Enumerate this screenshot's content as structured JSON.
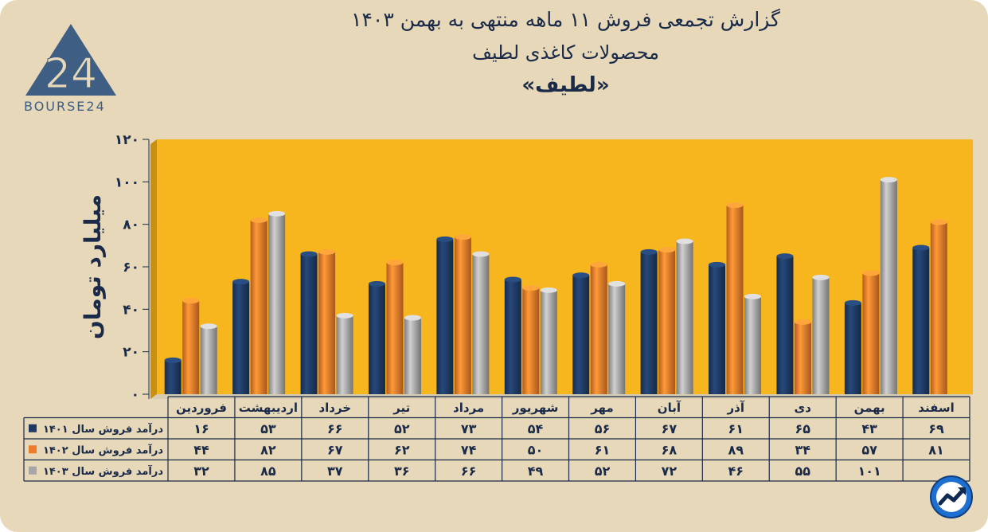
{
  "header": {
    "title_line1": "گزارش تجمعی فروش ۱۱ ماهه منتهی به بهمن ۱۴۰۳",
    "title_line2": "محصولات کاغذی لطیف",
    "title_line3": "«لطیف»"
  },
  "logo": {
    "text": "BOURSE24",
    "icon": "bourse24-logo-icon"
  },
  "corner_badge": {
    "icon": "trend-chart-badge-icon"
  },
  "colors": {
    "background": "#e6d8b8",
    "plot_area": "#f7b61e",
    "series_1401": "#1e3a62",
    "series_1402": "#ee7b2b",
    "series_1403": "#a6a6a6",
    "text": "#1a2a48"
  },
  "chart_data": {
    "type": "bar",
    "ylabel": "میلیارد تومان",
    "ylim": [
      0,
      120
    ],
    "yticks": [
      "۰",
      "۲۰",
      "۴۰",
      "۶۰",
      "۸۰",
      "۱۰۰",
      "۱۲۰"
    ],
    "yticks_values": [
      0,
      20,
      40,
      60,
      80,
      100,
      120
    ],
    "grid": false,
    "legend_placement": "table-left",
    "categories": [
      "فروردین",
      "اردیبهشت",
      "خرداد",
      "تیر",
      "مرداد",
      "شهریور",
      "مهر",
      "آبان",
      "آذر",
      "دی",
      "بهمن",
      "اسفند"
    ],
    "series": [
      {
        "name": "درآمد فروش سال ۱۴۰۱",
        "color": "#1e3a62",
        "values": [
          16,
          53,
          66,
          52,
          73,
          54,
          56,
          67,
          61,
          65,
          43,
          69
        ],
        "labels": [
          "۱۶",
          "۵۳",
          "۶۶",
          "۵۲",
          "۷۳",
          "۵۴",
          "۵۶",
          "۶۷",
          "۶۱",
          "۶۵",
          "۴۳",
          "۶۹"
        ]
      },
      {
        "name": "درآمد فروش سال ۱۴۰۲",
        "color": "#ee7b2b",
        "values": [
          44,
          82,
          67,
          62,
          74,
          50,
          61,
          68,
          89,
          34,
          57,
          81
        ],
        "labels": [
          "۴۴",
          "۸۲",
          "۶۷",
          "۶۲",
          "۷۴",
          "۵۰",
          "۶۱",
          "۶۸",
          "۸۹",
          "۳۴",
          "۵۷",
          "۸۱"
        ]
      },
      {
        "name": "درآمد فروش سال ۱۴۰۳",
        "color": "#a6a6a6",
        "values": [
          32,
          85,
          37,
          36,
          66,
          49,
          52,
          72,
          46,
          55,
          101,
          null
        ],
        "labels": [
          "۳۲",
          "۸۵",
          "۳۷",
          "۳۶",
          "۶۶",
          "۴۹",
          "۵۲",
          "۷۲",
          "۴۶",
          "۵۵",
          "۱۰۱",
          ""
        ]
      }
    ]
  }
}
